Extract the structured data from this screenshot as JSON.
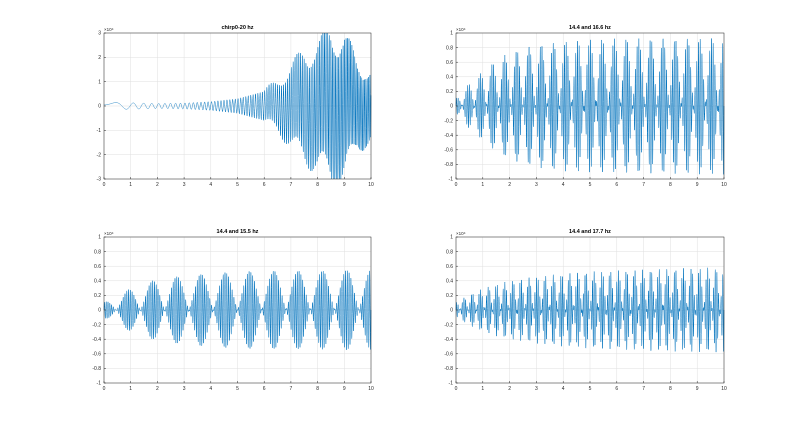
{
  "colors": {
    "line": "#0072BD",
    "grid": "#DFDFDF",
    "axis": "#262626",
    "background": "#FFFFFF"
  },
  "chart_data": [
    {
      "type": "line",
      "title": "chirp0-20  hz",
      "xlabel": "",
      "ylabel": "",
      "xlim": [
        0,
        10
      ],
      "ylim": [
        -3,
        3
      ],
      "xticks": [
        "0",
        "1",
        "2",
        "3",
        "4",
        "5",
        "6",
        "7",
        "8",
        "9",
        "10"
      ],
      "yticks": [
        "-3",
        "-2",
        "-1",
        "0",
        "1",
        "2",
        "3"
      ],
      "y_exponent": "×10⁴",
      "grid": true,
      "envelope": {
        "x": [
          0,
          1,
          2,
          3,
          4,
          5,
          6,
          6.5,
          7,
          7.5,
          8,
          8.5,
          9,
          9.5,
          10
        ],
        "y": [
          0.15,
          0.13,
          0.1,
          0.12,
          0.18,
          0.3,
          0.6,
          0.9,
          1.5,
          2.0,
          2.3,
          2.8,
          2.6,
          1.6,
          1.3
        ]
      },
      "signal": "chirp",
      "freq_range_hz": [
        0,
        20
      ]
    },
    {
      "type": "line",
      "title": "14.4  and 16.6  hz",
      "xlabel": "",
      "ylabel": "",
      "xlim": [
        0,
        10
      ],
      "ylim": [
        -1,
        1
      ],
      "xticks": [
        "0",
        "1",
        "2",
        "3",
        "4",
        "5",
        "6",
        "7",
        "8",
        "9",
        "10"
      ],
      "yticks": [
        "-1",
        "-0.8",
        "-0.6",
        "-0.4",
        "-0.2",
        "0",
        "0.2",
        "0.4",
        "0.6",
        "0.8",
        "1"
      ],
      "y_exponent": "×10⁴",
      "grid": true,
      "envelope": {
        "x": [
          0,
          0.5,
          1,
          1.5,
          2,
          3,
          4,
          5,
          6,
          7,
          8,
          9,
          10
        ],
        "y": [
          0.1,
          0.3,
          0.45,
          0.6,
          0.7,
          0.8,
          0.85,
          0.87,
          0.88,
          0.88,
          0.88,
          0.89,
          0.9
        ]
      },
      "signal": "two-tone",
      "freqs_hz": [
        14.4,
        16.6
      ]
    },
    {
      "type": "line",
      "title": "14.4  and 15.5  hz",
      "xlabel": "",
      "ylabel": "",
      "xlim": [
        0,
        10
      ],
      "ylim": [
        -1,
        1
      ],
      "xticks": [
        "0",
        "1",
        "2",
        "3",
        "4",
        "5",
        "6",
        "7",
        "8",
        "9",
        "10"
      ],
      "yticks": [
        "-1",
        "-0.8",
        "-0.6",
        "-0.4",
        "-0.2",
        "0",
        "0.2",
        "0.4",
        "0.6",
        "0.8",
        "1"
      ],
      "y_exponent": "×10⁴",
      "grid": true,
      "envelope": {
        "x": [
          0,
          0.5,
          1,
          1.5,
          2,
          3,
          4,
          5,
          6,
          7,
          8,
          9,
          10
        ],
        "y": [
          0.1,
          0.2,
          0.28,
          0.35,
          0.4,
          0.45,
          0.48,
          0.5,
          0.51,
          0.51,
          0.51,
          0.52,
          0.52
        ]
      },
      "signal": "two-tone",
      "freqs_hz": [
        14.4,
        15.5
      ]
    },
    {
      "type": "line",
      "title": "14.4  and 17.7  hz",
      "xlabel": "",
      "ylabel": "",
      "xlim": [
        0,
        10
      ],
      "ylim": [
        -1,
        1
      ],
      "xticks": [
        "0",
        "1",
        "2",
        "3",
        "4",
        "5",
        "6",
        "7",
        "8",
        "9",
        "10"
      ],
      "yticks": [
        "-1",
        "-0.8",
        "-0.6",
        "-0.4",
        "-0.2",
        "0",
        "0.2",
        "0.4",
        "0.6",
        "0.8",
        "1"
      ],
      "y_exponent": "×10⁴",
      "grid": true,
      "envelope": {
        "x": [
          0,
          0.5,
          1,
          1.5,
          2,
          3,
          4,
          5,
          6,
          7,
          8,
          9,
          10
        ],
        "y": [
          0.1,
          0.2,
          0.28,
          0.34,
          0.38,
          0.44,
          0.48,
          0.51,
          0.52,
          0.53,
          0.54,
          0.55,
          0.55
        ]
      },
      "signal": "two-tone",
      "freqs_hz": [
        14.4,
        17.7
      ]
    }
  ]
}
